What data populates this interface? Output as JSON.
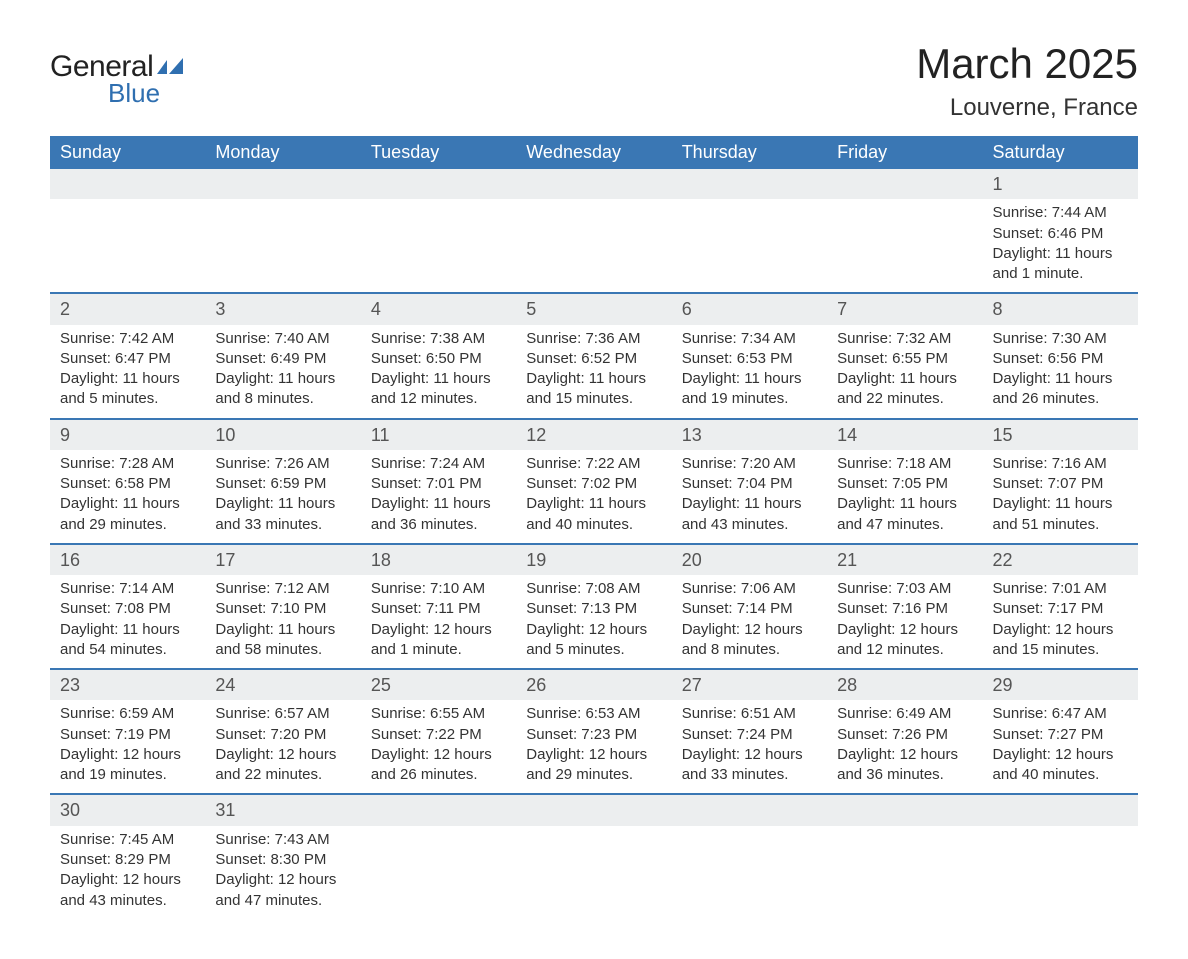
{
  "logo": {
    "text1": "General",
    "text2": "Blue",
    "mark_color": "#2f6fb0"
  },
  "title": "March 2025",
  "location": "Louverne, France",
  "colors": {
    "header_bg": "#3a77b4",
    "header_text": "#ffffff",
    "daynum_bg": "#eceeef",
    "row_border": "#3a77b4",
    "body_text": "#333333",
    "page_bg": "#ffffff"
  },
  "weekdays": [
    "Sunday",
    "Monday",
    "Tuesday",
    "Wednesday",
    "Thursday",
    "Friday",
    "Saturday"
  ],
  "weeks": [
    [
      null,
      null,
      null,
      null,
      null,
      null,
      {
        "n": "1",
        "sr": "7:44 AM",
        "ss": "6:46 PM",
        "dl": "11 hours and 1 minute."
      }
    ],
    [
      {
        "n": "2",
        "sr": "7:42 AM",
        "ss": "6:47 PM",
        "dl": "11 hours and 5 minutes."
      },
      {
        "n": "3",
        "sr": "7:40 AM",
        "ss": "6:49 PM",
        "dl": "11 hours and 8 minutes."
      },
      {
        "n": "4",
        "sr": "7:38 AM",
        "ss": "6:50 PM",
        "dl": "11 hours and 12 minutes."
      },
      {
        "n": "5",
        "sr": "7:36 AM",
        "ss": "6:52 PM",
        "dl": "11 hours and 15 minutes."
      },
      {
        "n": "6",
        "sr": "7:34 AM",
        "ss": "6:53 PM",
        "dl": "11 hours and 19 minutes."
      },
      {
        "n": "7",
        "sr": "7:32 AM",
        "ss": "6:55 PM",
        "dl": "11 hours and 22 minutes."
      },
      {
        "n": "8",
        "sr": "7:30 AM",
        "ss": "6:56 PM",
        "dl": "11 hours and 26 minutes."
      }
    ],
    [
      {
        "n": "9",
        "sr": "7:28 AM",
        "ss": "6:58 PM",
        "dl": "11 hours and 29 minutes."
      },
      {
        "n": "10",
        "sr": "7:26 AM",
        "ss": "6:59 PM",
        "dl": "11 hours and 33 minutes."
      },
      {
        "n": "11",
        "sr": "7:24 AM",
        "ss": "7:01 PM",
        "dl": "11 hours and 36 minutes."
      },
      {
        "n": "12",
        "sr": "7:22 AM",
        "ss": "7:02 PM",
        "dl": "11 hours and 40 minutes."
      },
      {
        "n": "13",
        "sr": "7:20 AM",
        "ss": "7:04 PM",
        "dl": "11 hours and 43 minutes."
      },
      {
        "n": "14",
        "sr": "7:18 AM",
        "ss": "7:05 PM",
        "dl": "11 hours and 47 minutes."
      },
      {
        "n": "15",
        "sr": "7:16 AM",
        "ss": "7:07 PM",
        "dl": "11 hours and 51 minutes."
      }
    ],
    [
      {
        "n": "16",
        "sr": "7:14 AM",
        "ss": "7:08 PM",
        "dl": "11 hours and 54 minutes."
      },
      {
        "n": "17",
        "sr": "7:12 AM",
        "ss": "7:10 PM",
        "dl": "11 hours and 58 minutes."
      },
      {
        "n": "18",
        "sr": "7:10 AM",
        "ss": "7:11 PM",
        "dl": "12 hours and 1 minute."
      },
      {
        "n": "19",
        "sr": "7:08 AM",
        "ss": "7:13 PM",
        "dl": "12 hours and 5 minutes."
      },
      {
        "n": "20",
        "sr": "7:06 AM",
        "ss": "7:14 PM",
        "dl": "12 hours and 8 minutes."
      },
      {
        "n": "21",
        "sr": "7:03 AM",
        "ss": "7:16 PM",
        "dl": "12 hours and 12 minutes."
      },
      {
        "n": "22",
        "sr": "7:01 AM",
        "ss": "7:17 PM",
        "dl": "12 hours and 15 minutes."
      }
    ],
    [
      {
        "n": "23",
        "sr": "6:59 AM",
        "ss": "7:19 PM",
        "dl": "12 hours and 19 minutes."
      },
      {
        "n": "24",
        "sr": "6:57 AM",
        "ss": "7:20 PM",
        "dl": "12 hours and 22 minutes."
      },
      {
        "n": "25",
        "sr": "6:55 AM",
        "ss": "7:22 PM",
        "dl": "12 hours and 26 minutes."
      },
      {
        "n": "26",
        "sr": "6:53 AM",
        "ss": "7:23 PM",
        "dl": "12 hours and 29 minutes."
      },
      {
        "n": "27",
        "sr": "6:51 AM",
        "ss": "7:24 PM",
        "dl": "12 hours and 33 minutes."
      },
      {
        "n": "28",
        "sr": "6:49 AM",
        "ss": "7:26 PM",
        "dl": "12 hours and 36 minutes."
      },
      {
        "n": "29",
        "sr": "6:47 AM",
        "ss": "7:27 PM",
        "dl": "12 hours and 40 minutes."
      }
    ],
    [
      {
        "n": "30",
        "sr": "7:45 AM",
        "ss": "8:29 PM",
        "dl": "12 hours and 43 minutes."
      },
      {
        "n": "31",
        "sr": "7:43 AM",
        "ss": "8:30 PM",
        "dl": "12 hours and 47 minutes."
      },
      null,
      null,
      null,
      null,
      null
    ]
  ],
  "labels": {
    "sunrise": "Sunrise: ",
    "sunset": "Sunset: ",
    "daylight": "Daylight: "
  }
}
